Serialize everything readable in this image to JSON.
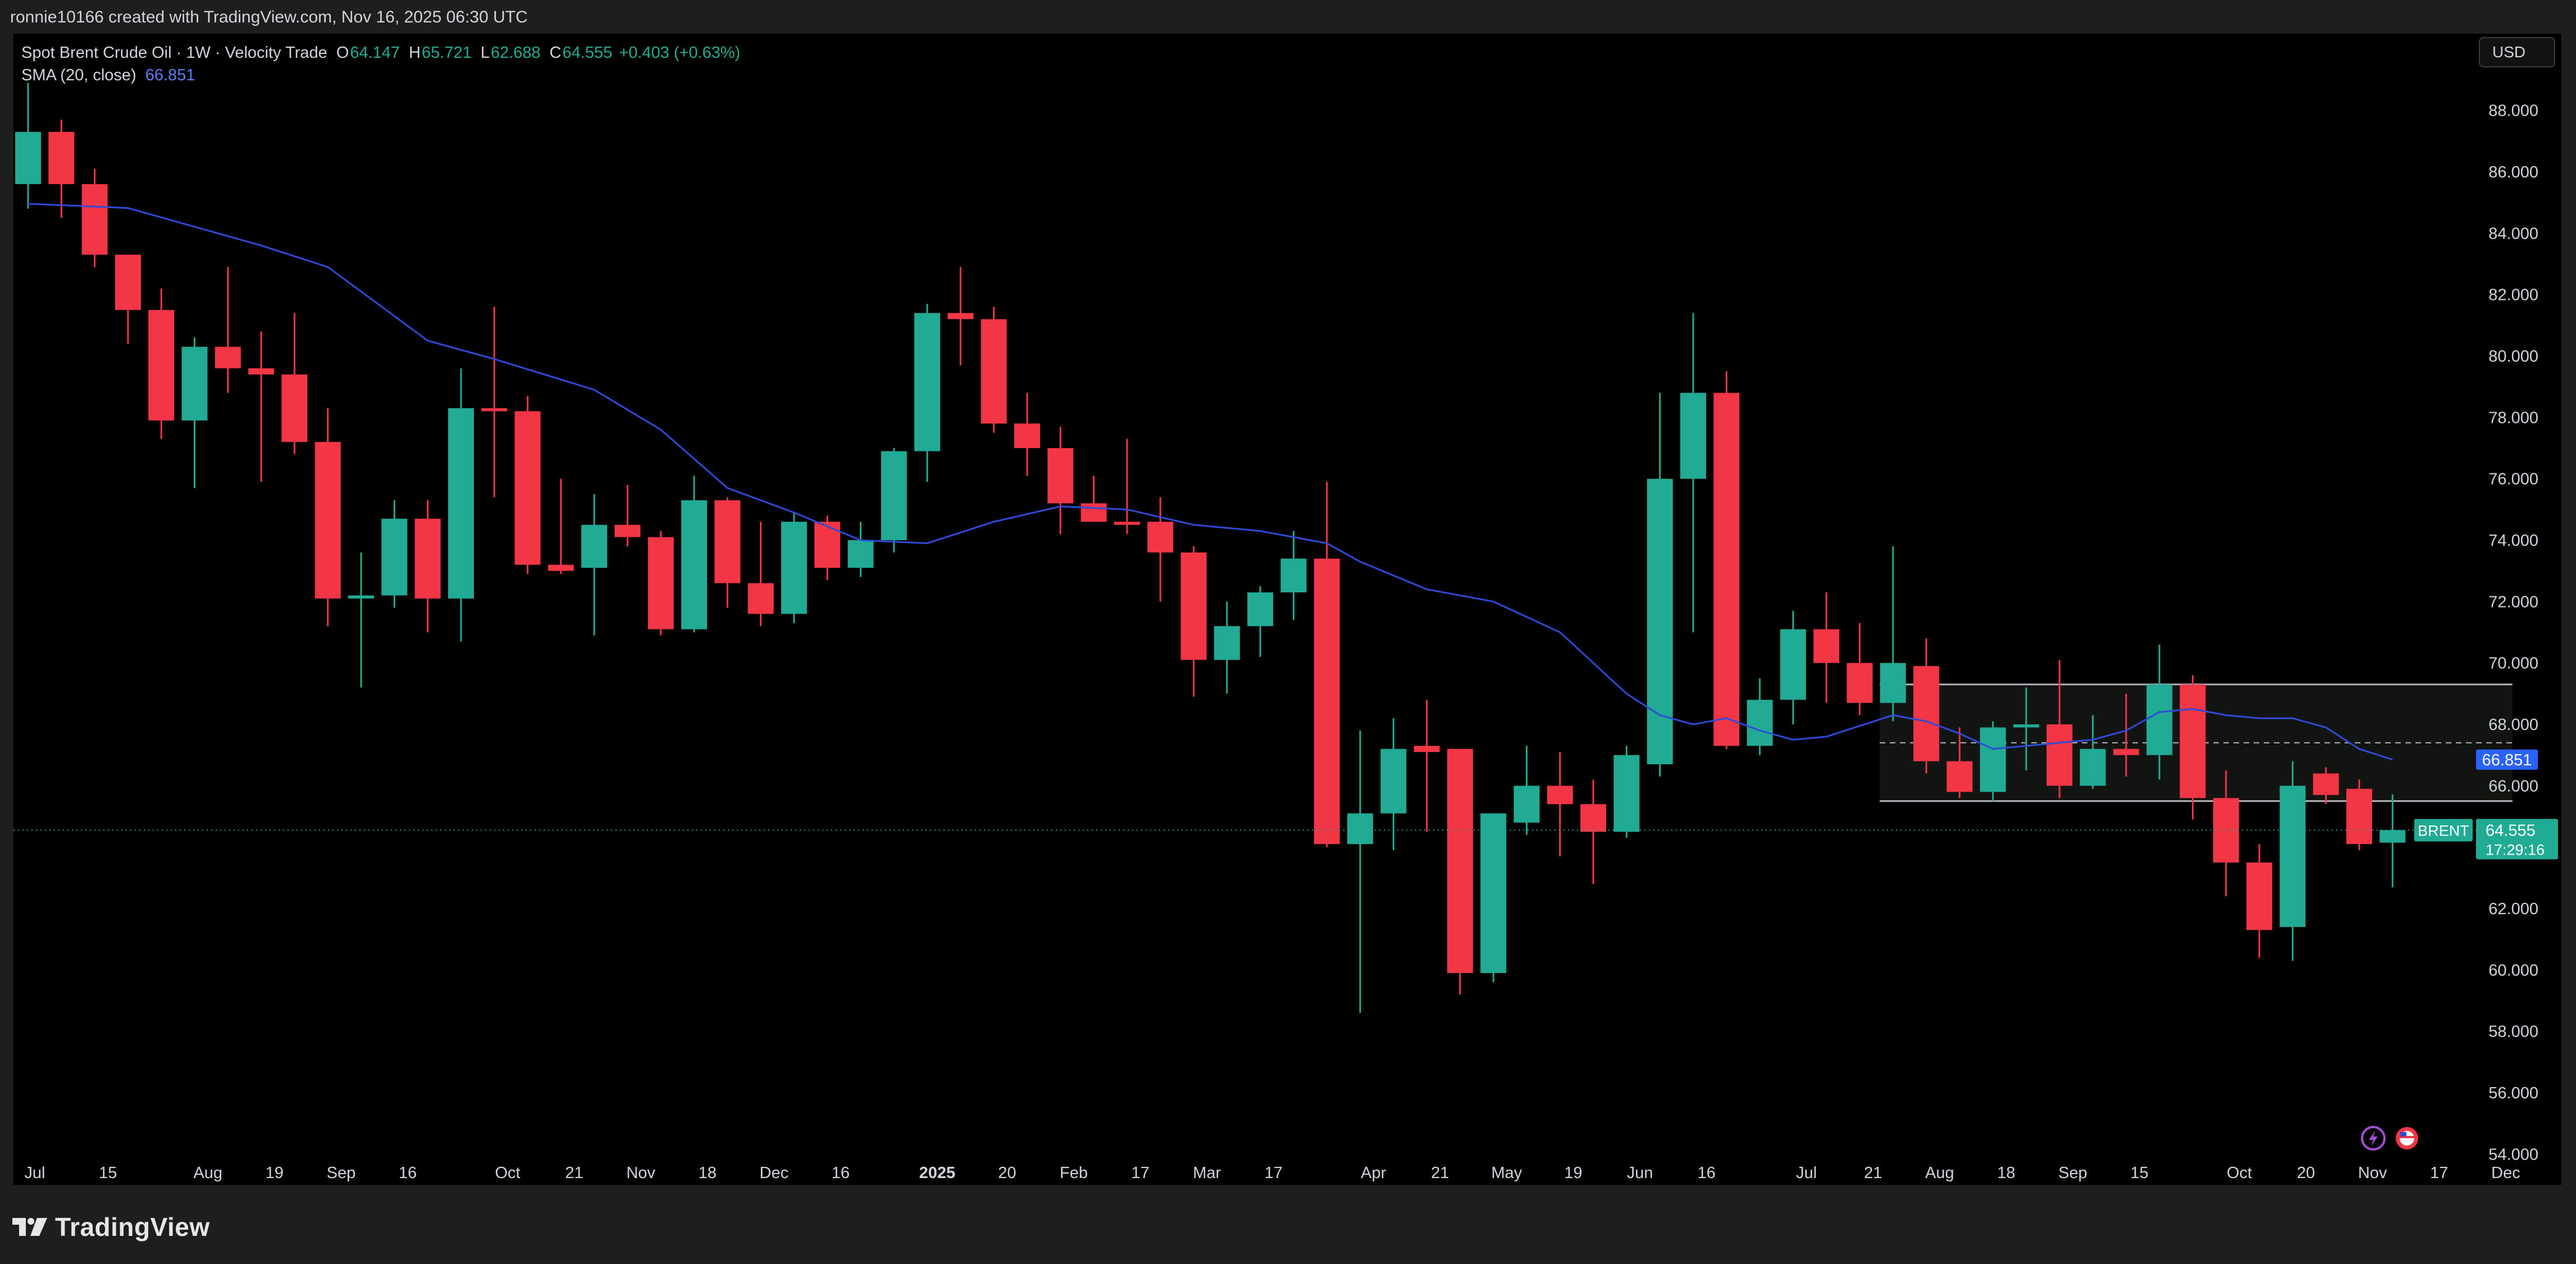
{
  "header": {
    "created_by": "ronnie10166 created with TradingView.com, Nov 16, 2025 06:30 UTC"
  },
  "legend": {
    "title": "Spot Brent Crude Oil · 1W · Velocity Trade",
    "open_key": "O",
    "open": "64.147",
    "high_key": "H",
    "high": "65.721",
    "low_key": "L",
    "low": "62.688",
    "close_key": "C",
    "close": "64.555",
    "change": "+0.403 (+0.63%)",
    "sma_label": "SMA (20, close)",
    "sma_value": "66.851"
  },
  "currency": "USD",
  "price_tag": {
    "symbol": "BRENT",
    "price": "64.555",
    "countdown": "17:29:16"
  },
  "sma_tag": "66.851",
  "brand": "TradingView",
  "colors": {
    "up": "#22ab94",
    "down": "#f23645",
    "sma": "#2f4ad8",
    "background": "#000000",
    "frame": "#1e1e1e"
  },
  "chart_data": {
    "type": "candlestick",
    "interval": "1W",
    "ylim": [
      53,
      90.5
    ],
    "y_ticks": [
      "54.000",
      "56.000",
      "58.000",
      "60.000",
      "62.000",
      "64.000",
      "66.000",
      "68.000",
      "70.000",
      "72.000",
      "74.000",
      "76.000",
      "78.000",
      "80.000",
      "82.000",
      "84.000",
      "86.000",
      "88.000"
    ],
    "x_labels": [
      {
        "label": "Jul",
        "bar": 0.2
      },
      {
        "label": "15",
        "bar": 2.4
      },
      {
        "label": "Aug",
        "bar": 5.4
      },
      {
        "label": "19",
        "bar": 7.4
      },
      {
        "label": "Sep",
        "bar": 9.4
      },
      {
        "label": "16",
        "bar": 11.4
      },
      {
        "label": "Oct",
        "bar": 14.4
      },
      {
        "label": "21",
        "bar": 16.4
      },
      {
        "label": "Nov",
        "bar": 18.4
      },
      {
        "label": "18",
        "bar": 20.4
      },
      {
        "label": "Dec",
        "bar": 22.4
      },
      {
        "label": "16",
        "bar": 24.4
      },
      {
        "label": "2025",
        "bar": 27.3,
        "bold": true
      },
      {
        "label": "20",
        "bar": 29.4
      },
      {
        "label": "Feb",
        "bar": 31.4
      },
      {
        "label": "17",
        "bar": 33.4
      },
      {
        "label": "Mar",
        "bar": 35.4
      },
      {
        "label": "17",
        "bar": 37.4
      },
      {
        "label": "Apr",
        "bar": 40.4
      },
      {
        "label": "21",
        "bar": 42.4
      },
      {
        "label": "May",
        "bar": 44.4
      },
      {
        "label": "19",
        "bar": 46.4
      },
      {
        "label": "Jun",
        "bar": 48.4
      },
      {
        "label": "16",
        "bar": 50.4
      },
      {
        "label": "Jul",
        "bar": 53.4
      },
      {
        "label": "21",
        "bar": 55.4
      },
      {
        "label": "Aug",
        "bar": 57.4
      },
      {
        "label": "18",
        "bar": 59.4
      },
      {
        "label": "Sep",
        "bar": 61.4
      },
      {
        "label": "15",
        "bar": 63.4
      },
      {
        "label": "Oct",
        "bar": 66.4
      },
      {
        "label": "20",
        "bar": 68.4
      },
      {
        "label": "Nov",
        "bar": 70.4
      },
      {
        "label": "17",
        "bar": 72.4
      },
      {
        "label": "Dec",
        "bar": 74.4
      }
    ],
    "candles": [
      {
        "o": 85.6,
        "h": 88.9,
        "l": 84.8,
        "c": 87.3
      },
      {
        "o": 87.3,
        "h": 87.7,
        "l": 84.5,
        "c": 85.6
      },
      {
        "o": 85.6,
        "h": 86.1,
        "l": 82.9,
        "c": 83.3
      },
      {
        "o": 83.3,
        "h": 83.3,
        "l": 80.4,
        "c": 81.5
      },
      {
        "o": 81.5,
        "h": 82.2,
        "l": 77.3,
        "c": 77.9
      },
      {
        "o": 77.9,
        "h": 80.6,
        "l": 75.7,
        "c": 80.3
      },
      {
        "o": 80.3,
        "h": 82.9,
        "l": 78.8,
        "c": 79.6
      },
      {
        "o": 79.6,
        "h": 80.8,
        "l": 75.9,
        "c": 79.4
      },
      {
        "o": 79.4,
        "h": 81.4,
        "l": 76.8,
        "c": 77.2
      },
      {
        "o": 77.2,
        "h": 78.3,
        "l": 71.2,
        "c": 72.1
      },
      {
        "o": 72.1,
        "h": 73.6,
        "l": 69.2,
        "c": 72.2
      },
      {
        "o": 72.2,
        "h": 75.3,
        "l": 71.8,
        "c": 74.7
      },
      {
        "o": 74.7,
        "h": 75.3,
        "l": 71.0,
        "c": 72.1
      },
      {
        "o": 72.1,
        "h": 79.6,
        "l": 70.7,
        "c": 78.3
      },
      {
        "o": 78.3,
        "h": 81.6,
        "l": 75.4,
        "c": 78.2
      },
      {
        "o": 78.2,
        "h": 78.7,
        "l": 72.9,
        "c": 73.2
      },
      {
        "o": 73.2,
        "h": 76.0,
        "l": 72.9,
        "c": 73.0
      },
      {
        "o": 73.1,
        "h": 75.5,
        "l": 70.9,
        "c": 74.5
      },
      {
        "o": 74.5,
        "h": 75.8,
        "l": 73.8,
        "c": 74.1
      },
      {
        "o": 74.1,
        "h": 74.3,
        "l": 70.9,
        "c": 71.1
      },
      {
        "o": 71.1,
        "h": 76.1,
        "l": 71.0,
        "c": 75.3
      },
      {
        "o": 75.3,
        "h": 75.4,
        "l": 71.8,
        "c": 72.6
      },
      {
        "o": 72.6,
        "h": 74.6,
        "l": 71.2,
        "c": 71.6
      },
      {
        "o": 71.6,
        "h": 74.9,
        "l": 71.3,
        "c": 74.6
      },
      {
        "o": 74.6,
        "h": 74.8,
        "l": 72.7,
        "c": 73.1
      },
      {
        "o": 73.1,
        "h": 74.6,
        "l": 72.8,
        "c": 74.0
      },
      {
        "o": 74.0,
        "h": 77.0,
        "l": 73.6,
        "c": 76.9
      },
      {
        "o": 76.9,
        "h": 81.7,
        "l": 75.9,
        "c": 81.4
      },
      {
        "o": 81.4,
        "h": 82.9,
        "l": 79.7,
        "c": 81.2
      },
      {
        "o": 81.2,
        "h": 81.6,
        "l": 77.5,
        "c": 77.8
      },
      {
        "o": 77.8,
        "h": 78.8,
        "l": 76.1,
        "c": 77.0
      },
      {
        "o": 77.0,
        "h": 77.7,
        "l": 74.2,
        "c": 75.2
      },
      {
        "o": 75.2,
        "h": 76.1,
        "l": 74.6,
        "c": 74.6
      },
      {
        "o": 74.6,
        "h": 77.3,
        "l": 74.2,
        "c": 74.5
      },
      {
        "o": 74.6,
        "h": 75.4,
        "l": 72.0,
        "c": 73.6
      },
      {
        "o": 73.6,
        "h": 73.8,
        "l": 68.9,
        "c": 70.1
      },
      {
        "o": 70.1,
        "h": 72.0,
        "l": 69.0,
        "c": 71.2
      },
      {
        "o": 71.2,
        "h": 72.5,
        "l": 70.2,
        "c": 72.3
      },
      {
        "o": 72.3,
        "h": 74.3,
        "l": 71.4,
        "c": 73.4
      },
      {
        "o": 73.4,
        "h": 75.9,
        "l": 64.0,
        "c": 64.1
      },
      {
        "o": 64.1,
        "h": 67.8,
        "l": 58.6,
        "c": 65.1
      },
      {
        "o": 65.1,
        "h": 68.2,
        "l": 63.9,
        "c": 67.2
      },
      {
        "o": 67.3,
        "h": 68.8,
        "l": 64.5,
        "c": 67.1
      },
      {
        "o": 67.2,
        "h": 67.2,
        "l": 59.2,
        "c": 59.9
      },
      {
        "o": 59.9,
        "h": 65.1,
        "l": 59.6,
        "c": 65.1
      },
      {
        "o": 64.8,
        "h": 67.3,
        "l": 64.4,
        "c": 66.0
      },
      {
        "o": 66.0,
        "h": 67.1,
        "l": 63.7,
        "c": 65.4
      },
      {
        "o": 65.4,
        "h": 66.2,
        "l": 62.8,
        "c": 64.5
      },
      {
        "o": 64.5,
        "h": 67.3,
        "l": 64.3,
        "c": 67.0
      },
      {
        "o": 66.7,
        "h": 78.8,
        "l": 66.3,
        "c": 76.0
      },
      {
        "o": 76.0,
        "h": 81.4,
        "l": 71.0,
        "c": 78.8
      },
      {
        "o": 78.8,
        "h": 79.5,
        "l": 67.2,
        "c": 67.3
      },
      {
        "o": 67.3,
        "h": 69.5,
        "l": 67.0,
        "c": 68.8
      },
      {
        "o": 68.8,
        "h": 71.7,
        "l": 68.0,
        "c": 71.1
      },
      {
        "o": 71.1,
        "h": 72.3,
        "l": 68.7,
        "c": 70.0
      },
      {
        "o": 70.0,
        "h": 71.3,
        "l": 68.3,
        "c": 68.7
      },
      {
        "o": 68.7,
        "h": 73.8,
        "l": 68.1,
        "c": 70.0
      },
      {
        "o": 69.9,
        "h": 70.8,
        "l": 66.4,
        "c": 66.8
      },
      {
        "o": 66.8,
        "h": 67.9,
        "l": 65.6,
        "c": 65.8
      },
      {
        "o": 65.8,
        "h": 68.1,
        "l": 65.5,
        "c": 67.9
      },
      {
        "o": 67.9,
        "h": 69.2,
        "l": 66.5,
        "c": 68.0
      },
      {
        "o": 68.0,
        "h": 70.1,
        "l": 65.6,
        "c": 66.0
      },
      {
        "o": 66.0,
        "h": 68.3,
        "l": 65.9,
        "c": 67.2
      },
      {
        "o": 67.2,
        "h": 69.0,
        "l": 66.3,
        "c": 67.0
      },
      {
        "o": 67.0,
        "h": 70.6,
        "l": 66.2,
        "c": 69.3
      },
      {
        "o": 69.3,
        "h": 69.6,
        "l": 64.9,
        "c": 65.6
      },
      {
        "o": 65.6,
        "h": 66.5,
        "l": 62.4,
        "c": 63.5
      },
      {
        "o": 63.5,
        "h": 64.1,
        "l": 60.4,
        "c": 61.3
      },
      {
        "o": 61.4,
        "h": 66.8,
        "l": 60.3,
        "c": 66.0
      },
      {
        "o": 66.4,
        "h": 66.6,
        "l": 65.4,
        "c": 65.7
      },
      {
        "o": 65.9,
        "h": 66.2,
        "l": 63.9,
        "c": 64.1
      },
      {
        "o": 64.147,
        "h": 65.721,
        "l": 62.688,
        "c": 64.555
      }
    ],
    "sma20": [
      [
        0,
        84.96
      ],
      [
        3,
        84.82
      ],
      [
        7,
        83.6
      ],
      [
        9,
        82.9
      ],
      [
        12,
        80.5
      ],
      [
        14,
        79.9
      ],
      [
        17,
        78.9
      ],
      [
        19,
        77.6
      ],
      [
        21,
        75.7
      ],
      [
        23,
        74.9
      ],
      [
        25,
        74.0
      ],
      [
        27,
        73.9
      ],
      [
        29,
        74.6
      ],
      [
        31,
        75.1
      ],
      [
        33,
        75.0
      ],
      [
        35,
        74.5
      ],
      [
        37,
        74.3
      ],
      [
        39,
        73.9
      ],
      [
        40,
        73.3
      ],
      [
        42,
        72.4
      ],
      [
        44,
        72.0
      ],
      [
        46,
        71.0
      ],
      [
        47,
        70.0
      ],
      [
        48,
        69.0
      ],
      [
        49,
        68.3
      ],
      [
        50,
        68.0
      ],
      [
        51,
        68.2
      ],
      [
        52,
        67.8
      ],
      [
        53,
        67.5
      ],
      [
        54,
        67.6
      ],
      [
        56,
        68.3
      ],
      [
        57,
        68.1
      ],
      [
        58,
        67.7
      ],
      [
        59,
        67.2
      ],
      [
        60,
        67.3
      ],
      [
        62,
        67.5
      ],
      [
        63,
        67.8
      ],
      [
        64,
        68.4
      ],
      [
        65,
        68.5
      ],
      [
        66,
        68.3
      ],
      [
        67,
        68.2
      ],
      [
        68,
        68.2
      ],
      [
        69,
        67.9
      ],
      [
        70,
        67.2
      ],
      [
        71,
        66.851
      ]
    ],
    "annotations": {
      "range_box": {
        "from_bar": 55.6,
        "to_bar": 74.6,
        "top": 69.3,
        "bottom": 65.5,
        "mid": 67.4
      },
      "last_price_line": 64.555
    }
  }
}
